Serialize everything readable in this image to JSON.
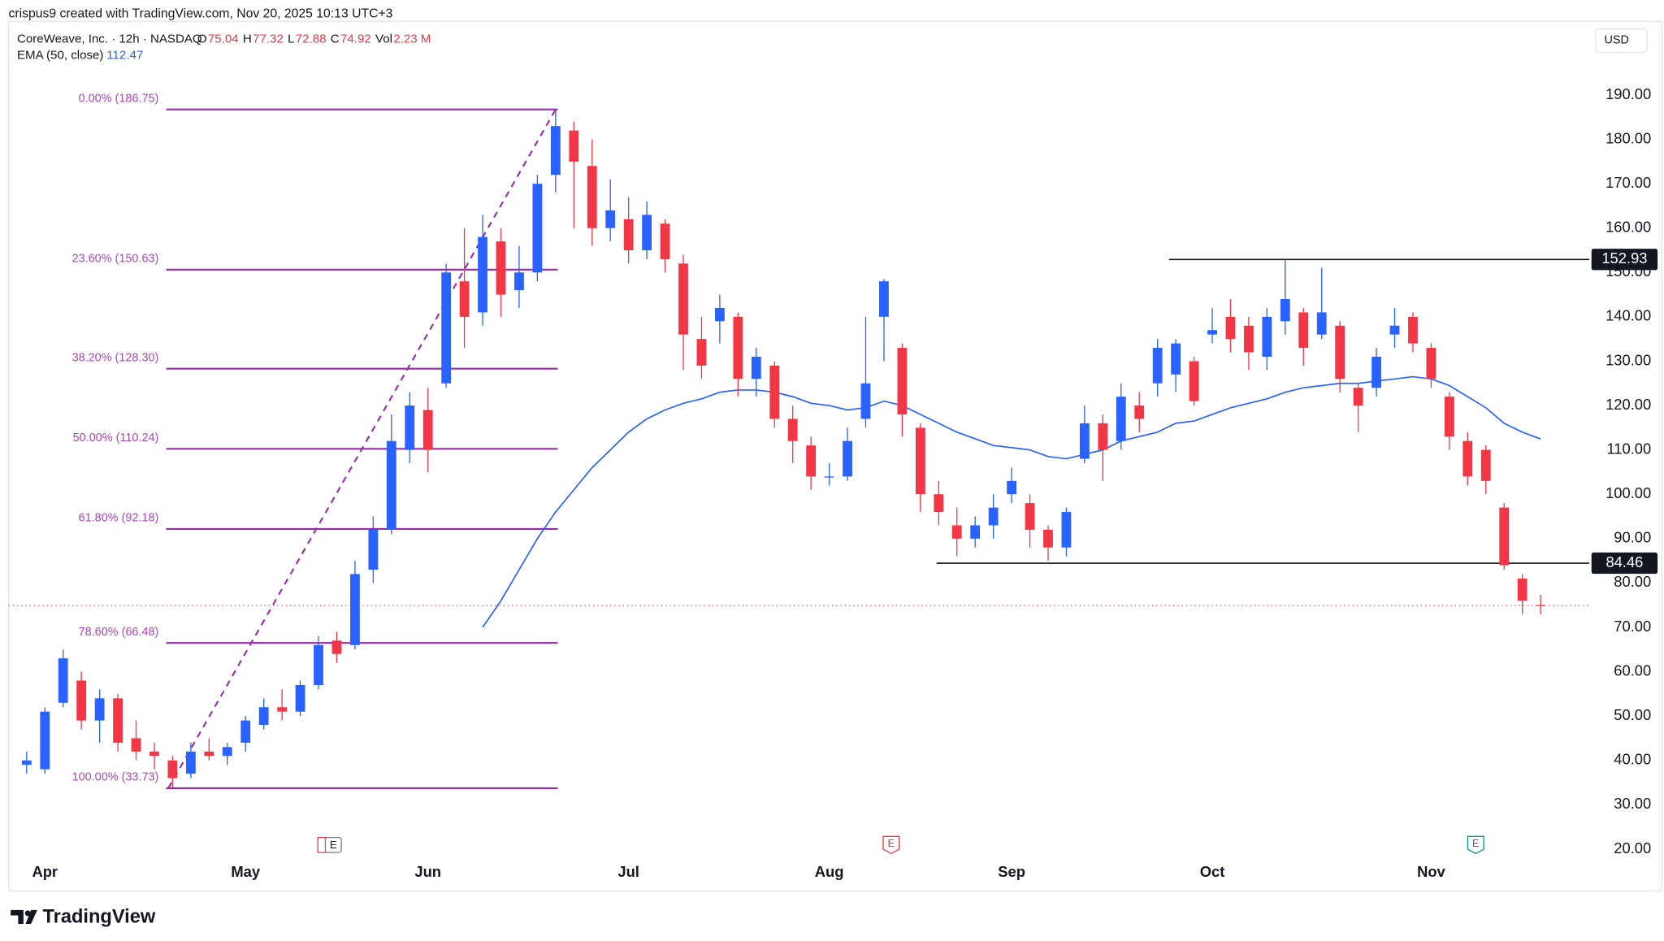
{
  "header": {
    "credit": "crispus9 created with TradingView.com, Nov 20, 2025 10:13 UTC+3",
    "symbol": "CoreWeave, Inc. · 12h · NASDAQ",
    "ohlc_keys": [
      "O",
      "H",
      "L",
      "C"
    ],
    "vol_key": "Vol",
    "vol": "2.23 M",
    "currency": "USD"
  },
  "events": [
    "E",
    "E",
    "E"
  ],
  "footer": {
    "brand": "TradingView"
  },
  "chart_data": {
    "type": "candlestick",
    "title": "CoreWeave, Inc.",
    "up_color": "#2962ff",
    "down_color": "#f23645",
    "ylim": [
      10.6,
      206.6
    ],
    "yticks": [
      {
        "value": 20,
        "label": "20.00"
      },
      {
        "value": 30,
        "label": "30.00"
      },
      {
        "value": 40,
        "label": "40.00"
      },
      {
        "value": 50,
        "label": "50.00"
      },
      {
        "value": 60,
        "label": "60.00"
      },
      {
        "value": 70,
        "label": "70.00"
      },
      {
        "value": 80,
        "label": "80.00"
      },
      {
        "value": 90,
        "label": "90.00"
      },
      {
        "value": 100,
        "label": "100.00"
      },
      {
        "value": 110,
        "label": "110.00"
      },
      {
        "value": 120,
        "label": "120.00"
      },
      {
        "value": 130,
        "label": "130.00"
      },
      {
        "value": 140,
        "label": "140.00"
      },
      {
        "value": 150,
        "label": "150.00"
      },
      {
        "value": 160,
        "label": "160.00"
      },
      {
        "value": 170,
        "label": "170.00"
      },
      {
        "value": 180,
        "label": "180.00"
      },
      {
        "value": 190,
        "label": "190.00"
      }
    ],
    "categories": [
      null,
      "Apr",
      null,
      null,
      null,
      null,
      null,
      null,
      null,
      null,
      null,
      null,
      "May",
      null,
      null,
      null,
      null,
      null,
      null,
      null,
      null,
      null,
      "Jun",
      null,
      null,
      null,
      null,
      null,
      null,
      null,
      null,
      null,
      null,
      "Jul",
      null,
      null,
      null,
      null,
      null,
      null,
      null,
      null,
      null,
      null,
      "Aug",
      null,
      null,
      null,
      null,
      null,
      null,
      null,
      null,
      null,
      "Sep",
      null,
      null,
      null,
      null,
      null,
      null,
      null,
      null,
      null,
      null,
      "Oct",
      null,
      null,
      null,
      null,
      null,
      null,
      null,
      null,
      null,
      null,
      null,
      "Nov",
      null,
      null,
      null,
      null,
      null,
      null
    ],
    "ohlc": [
      [
        39,
        42,
        37,
        40
      ],
      [
        38,
        52,
        37,
        51
      ],
      [
        53,
        65,
        52,
        63
      ],
      [
        58,
        60,
        47,
        49
      ],
      [
        49,
        56,
        44,
        54
      ],
      [
        54,
        55,
        42,
        44
      ],
      [
        45,
        49,
        40,
        42
      ],
      [
        42,
        44,
        38,
        41
      ],
      [
        40,
        41,
        33.73,
        36
      ],
      [
        37,
        44,
        36,
        42
      ],
      [
        42,
        45,
        40,
        41
      ],
      [
        41,
        44,
        39,
        43
      ],
      [
        44,
        50,
        42,
        49
      ],
      [
        48,
        54,
        47,
        52
      ],
      [
        52,
        56,
        49,
        51
      ],
      [
        51,
        58,
        50,
        57
      ],
      [
        57,
        68,
        56,
        66
      ],
      [
        67,
        69,
        62,
        64
      ],
      [
        66,
        85,
        65,
        82
      ],
      [
        83,
        95,
        80,
        92
      ],
      [
        92,
        118,
        91,
        112
      ],
      [
        110,
        123,
        107,
        120
      ],
      [
        119,
        124,
        105,
        110
      ],
      [
        125,
        152,
        124,
        150
      ],
      [
        148,
        160,
        133,
        140
      ],
      [
        141,
        163,
        138,
        158
      ],
      [
        157,
        160,
        140,
        145
      ],
      [
        146,
        156,
        142,
        150
      ],
      [
        150,
        172,
        148,
        170
      ],
      [
        172,
        186.75,
        168,
        183
      ],
      [
        182,
        184,
        160,
        175
      ],
      [
        174,
        180,
        156,
        160
      ],
      [
        160,
        171,
        157,
        164
      ],
      [
        162,
        167,
        152,
        155
      ],
      [
        155,
        166,
        153,
        163
      ],
      [
        161,
        162,
        150,
        153
      ],
      [
        152,
        154,
        128,
        136
      ],
      [
        135,
        140,
        126,
        129
      ],
      [
        139,
        145,
        134,
        142
      ],
      [
        140,
        141,
        122,
        126
      ],
      [
        126,
        133,
        122,
        131
      ],
      [
        129,
        130,
        115,
        117
      ],
      [
        117,
        120,
        107,
        112
      ],
      [
        111,
        113,
        101,
        104
      ],
      [
        104,
        107,
        102,
        104
      ],
      [
        104,
        115,
        103,
        112
      ],
      [
        117,
        140,
        115,
        125
      ],
      [
        140,
        148.5,
        130,
        148
      ],
      [
        133,
        134,
        113,
        118
      ],
      [
        115,
        116,
        96,
        100
      ],
      [
        100,
        103,
        93,
        96
      ],
      [
        93,
        97,
        86,
        90
      ],
      [
        90,
        95,
        88,
        93
      ],
      [
        93,
        100,
        90,
        97
      ],
      [
        100,
        106,
        98,
        103
      ],
      [
        98,
        100,
        88,
        92
      ],
      [
        92,
        93,
        85,
        88
      ],
      [
        88,
        97,
        86,
        96
      ],
      [
        108,
        120,
        107,
        116
      ],
      [
        116,
        118,
        103,
        110
      ],
      [
        112,
        125,
        110,
        122
      ],
      [
        120,
        123,
        114,
        117
      ],
      [
        125,
        135,
        122,
        133
      ],
      [
        127,
        135,
        123,
        134
      ],
      [
        130,
        131,
        120,
        121
      ],
      [
        136,
        142,
        134,
        137
      ],
      [
        140,
        144,
        132,
        135
      ],
      [
        138,
        140,
        128,
        132
      ],
      [
        131,
        142,
        128,
        140
      ],
      [
        139,
        152.93,
        136,
        144
      ],
      [
        141,
        142,
        129,
        133
      ],
      [
        136,
        151,
        135,
        141
      ],
      [
        138,
        139,
        123,
        126
      ],
      [
        124,
        125,
        114,
        120
      ],
      [
        124,
        133,
        122,
        131
      ],
      [
        136,
        142,
        133,
        138
      ],
      [
        140,
        141,
        132,
        134
      ],
      [
        133,
        134,
        124,
        126
      ],
      [
        122,
        123,
        110,
        113
      ],
      [
        112,
        114,
        102,
        104
      ],
      [
        110,
        111,
        100,
        103
      ],
      [
        97,
        98,
        83,
        84
      ],
      [
        81,
        82,
        73,
        76
      ],
      [
        75.04,
        77.32,
        72.88,
        74.92
      ]
    ],
    "ema": {
      "name": "EMA (50, close)",
      "color": "#2962ff",
      "values": [
        null,
        null,
        null,
        null,
        null,
        null,
        null,
        null,
        null,
        null,
        null,
        null,
        null,
        null,
        null,
        null,
        null,
        null,
        null,
        null,
        null,
        null,
        null,
        null,
        null,
        70,
        76,
        83,
        90,
        96,
        101,
        106,
        110,
        114,
        117,
        119,
        120.5,
        121.5,
        123,
        123.5,
        123.5,
        123,
        122,
        120.5,
        120,
        119,
        119.5,
        121,
        120,
        118,
        116,
        114,
        112.5,
        111,
        110.5,
        110,
        108.5,
        108,
        109,
        110,
        112,
        113,
        114,
        116,
        116.5,
        118,
        119.5,
        120.5,
        121.5,
        123,
        124,
        124.5,
        125,
        125,
        125.5,
        126,
        126.5,
        126,
        124.5,
        122,
        119.5,
        116,
        114,
        112.47
      ]
    },
    "fib": {
      "color": "#9c27b0",
      "levels": [
        {
          "value": 186.75,
          "label": "0.00% (186.75)"
        },
        {
          "value": 150.63,
          "label": "23.60% (150.63)"
        },
        {
          "value": 128.3,
          "label": "38.20% (128.30)"
        },
        {
          "value": 110.24,
          "label": "50.00% (110.24)"
        },
        {
          "value": 92.18,
          "label": "61.80% (92.18)"
        },
        {
          "value": 66.48,
          "label": "78.60% (66.48)"
        },
        {
          "value": 33.73,
          "label": "100.00% (33.73)"
        }
      ]
    },
    "hlines": [
      152.93,
      84.46
    ]
  }
}
